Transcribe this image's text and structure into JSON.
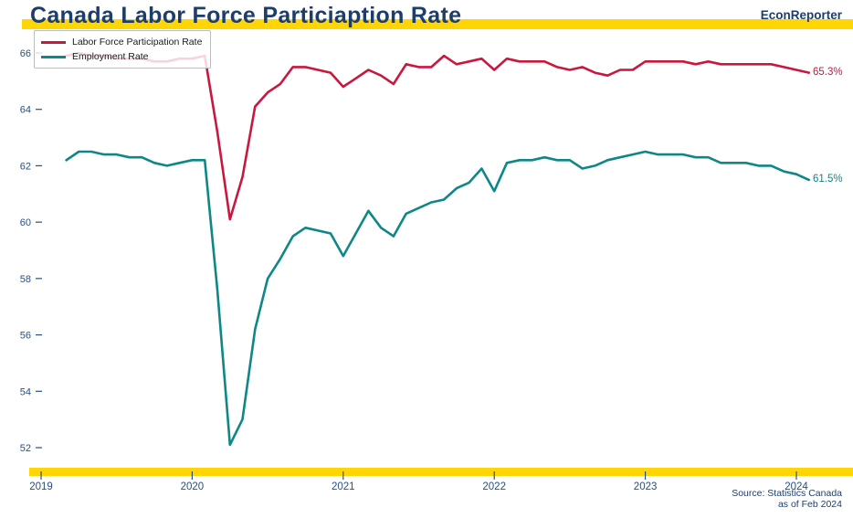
{
  "header": {
    "title": "Canada Labor Force Particiaption Rate",
    "brand": "EconReporter"
  },
  "legend": {
    "items": [
      {
        "label": "Labor Force Participation Rate",
        "color": "#c9173e"
      },
      {
        "label": "Employment Rate",
        "color": "#0e8788"
      }
    ]
  },
  "chart_data": {
    "type": "line",
    "title": "Canada Labor Force Particiaption Rate",
    "xlabel": "",
    "ylabel": "",
    "x_start": {
      "year": 2019,
      "month": 3
    },
    "x_end": {
      "year": 2024,
      "month": 2
    },
    "frequency": "monthly",
    "ylim": [
      51.5,
      66.4
    ],
    "yticks": [
      52,
      54,
      56,
      58,
      60,
      62,
      64,
      66
    ],
    "xticks": [
      2019,
      2020,
      2021,
      2022,
      2023,
      2024
    ],
    "grid": false,
    "legend_position": "top-left",
    "series": [
      {
        "name": "Labor Force Participation Rate",
        "color": "#c9173e",
        "end_label": "65.3%",
        "values": [
          65.9,
          66.0,
          65.9,
          65.9,
          65.8,
          65.8,
          65.8,
          65.7,
          65.7,
          65.8,
          65.8,
          65.9,
          63.2,
          60.1,
          61.6,
          64.1,
          64.6,
          64.9,
          65.5,
          65.5,
          65.4,
          65.3,
          64.8,
          65.1,
          65.4,
          65.2,
          64.9,
          65.6,
          65.5,
          65.5,
          65.9,
          65.6,
          65.7,
          65.8,
          65.4,
          65.8,
          65.7,
          65.7,
          65.7,
          65.5,
          65.4,
          65.5,
          65.3,
          65.2,
          65.4,
          65.4,
          65.7,
          65.7,
          65.7,
          65.7,
          65.6,
          65.7,
          65.6,
          65.6,
          65.6,
          65.6,
          65.6,
          65.5,
          65.4,
          65.3
        ]
      },
      {
        "name": "Employment Rate",
        "color": "#0e8788",
        "end_label": "61.5%",
        "values": [
          62.2,
          62.5,
          62.5,
          62.4,
          62.4,
          62.3,
          62.3,
          62.1,
          62.0,
          62.1,
          62.2,
          62.2,
          57.6,
          52.1,
          53.0,
          56.2,
          58.0,
          58.7,
          59.5,
          59.8,
          59.7,
          59.6,
          58.8,
          59.6,
          60.4,
          59.8,
          59.5,
          60.3,
          60.5,
          60.7,
          60.8,
          61.2,
          61.4,
          61.9,
          61.1,
          62.1,
          62.2,
          62.2,
          62.3,
          62.2,
          62.2,
          61.9,
          62.0,
          62.2,
          62.3,
          62.4,
          62.5,
          62.4,
          62.4,
          62.4,
          62.3,
          62.3,
          62.1,
          62.1,
          62.1,
          62.0,
          62.0,
          61.8,
          61.7,
          61.5
        ]
      }
    ]
  },
  "footer": {
    "source_line1": "Source: Statistics Canada",
    "source_line2": "as of Feb 2024"
  },
  "colors": {
    "navy": "#1d3e6b",
    "axis_text": "#27507f",
    "yellow": "#ffd503",
    "red": "#c9173e",
    "teal": "#0e8788"
  }
}
